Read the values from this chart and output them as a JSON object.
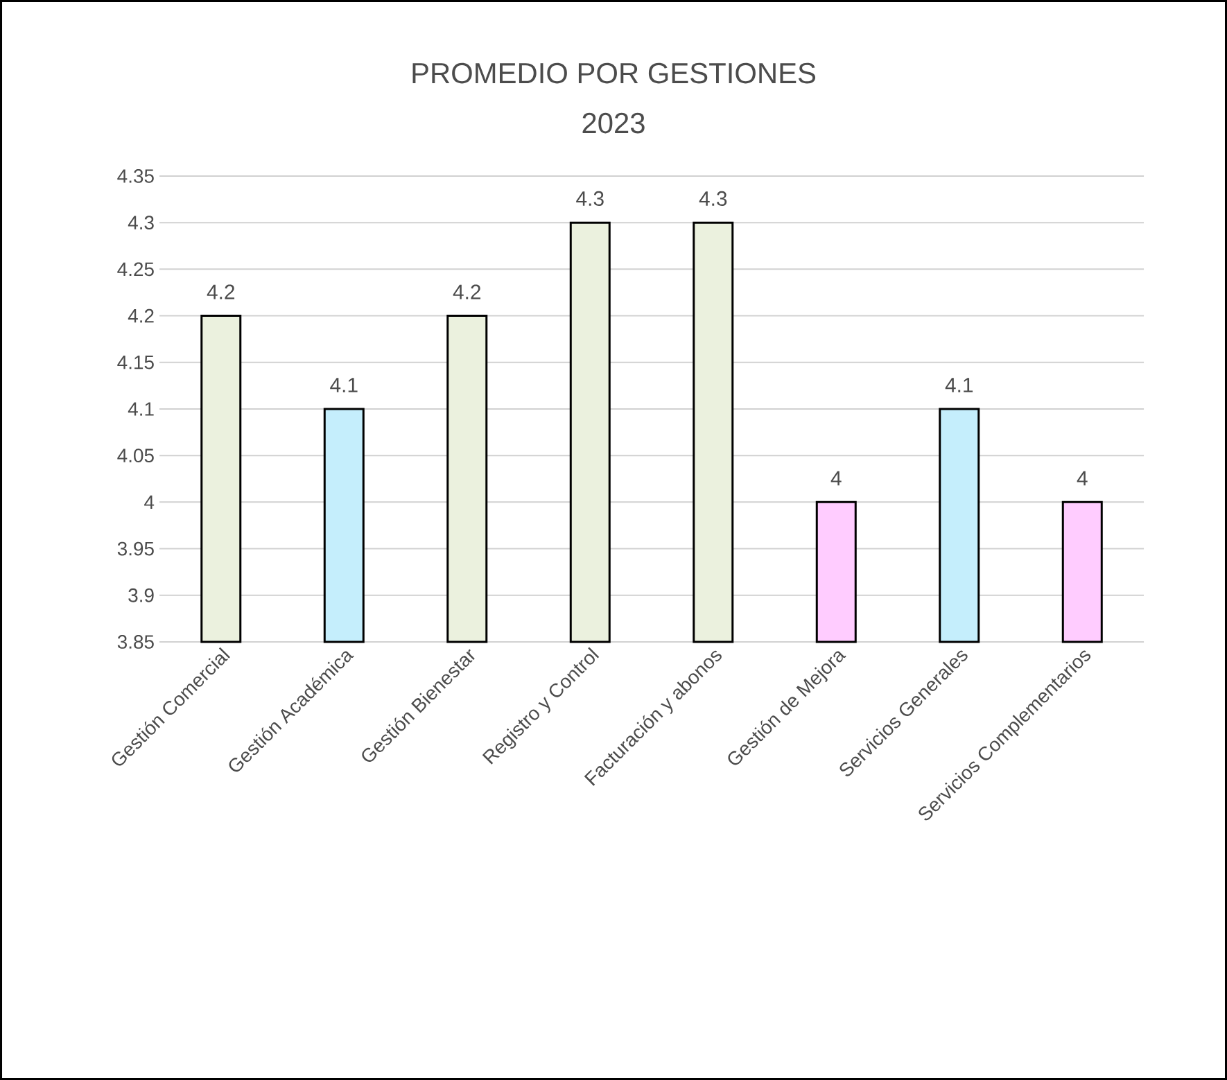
{
  "chart_data": {
    "type": "bar",
    "title": "PROMEDIO POR GESTIONES",
    "subtitle": "2023",
    "categories": [
      "Gestión Comercial",
      "Gestión Académica",
      "Gestión Bienestar",
      "Registro y Control",
      "Facturación y abonos",
      "Gestión de Mejora",
      "Servicios Generales",
      "Servicios Complementarios"
    ],
    "values": [
      4.2,
      4.1,
      4.2,
      4.3,
      4.3,
      4,
      4.1,
      4
    ],
    "colors": [
      "#ebf1de",
      "#c5eefc",
      "#ebf1de",
      "#ebf1de",
      "#ebf1de",
      "#ffccff",
      "#c5eefc",
      "#ffccff"
    ],
    "ylim": [
      3.85,
      4.35
    ],
    "yticks": [
      3.85,
      3.9,
      3.95,
      4,
      4.05,
      4.1,
      4.15,
      4.2,
      4.25,
      4.3,
      4.35
    ],
    "grid": "y",
    "data_labels": true
  }
}
